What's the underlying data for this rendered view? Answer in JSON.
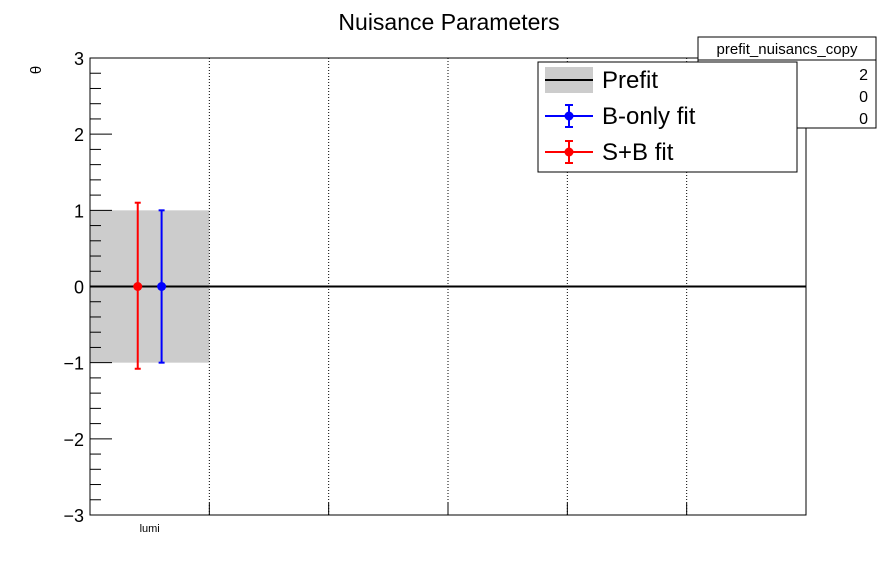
{
  "chart_data": {
    "type": "scatter",
    "title": "Nuisance Parameters",
    "ylabel": "θ",
    "xlabel": "",
    "ylim": [
      -3,
      3
    ],
    "y_ticks": [
      "3",
      "2",
      "1",
      "0",
      "−1",
      "−2",
      "−3"
    ],
    "categories": [
      "lumi"
    ],
    "n_bins": 6,
    "grid": "vertical dotted at bin edges",
    "prefit_band": {
      "name": "Prefit",
      "center": 0,
      "low": -1,
      "high": 1,
      "color": "#cccccc",
      "line_color": "#000000"
    },
    "series": [
      {
        "name": "B-only fit",
        "color": "#0000ff",
        "values": [
          0
        ],
        "err_low": [
          -1
        ],
        "err_high": [
          1
        ]
      },
      {
        "name": "S+B fit",
        "color": "#ff0000",
        "values": [
          0
        ],
        "err_low": [
          -1.08
        ],
        "err_high": [
          1.1
        ]
      }
    ],
    "legend_position": "top-right",
    "stats_box": {
      "title": "prefit_nuisancs_copy",
      "values": [
        "2",
        "0",
        "0"
      ]
    }
  }
}
